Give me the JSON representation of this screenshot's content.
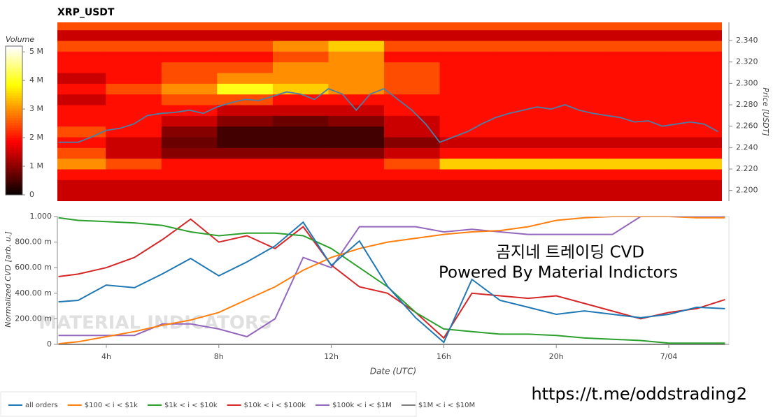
{
  "chart_data": [
    {
      "type": "heatmap",
      "title": "XRP_USDT",
      "ylabel": "Price [USDT]",
      "xlim": [
        2.26,
        26.14
      ],
      "ylim": [
        2.19,
        2.357
      ],
      "yticks": [
        {
          "value": 2.2,
          "label": "2.200"
        },
        {
          "value": 2.22,
          "label": "2.220"
        },
        {
          "value": 2.24,
          "label": "2.240"
        },
        {
          "value": 2.26,
          "label": "2.260"
        },
        {
          "value": 2.28,
          "label": "2.280"
        },
        {
          "value": 2.3,
          "label": "2.300"
        },
        {
          "value": 2.32,
          "label": "2.320"
        },
        {
          "value": 2.34,
          "label": "2.340"
        }
      ],
      "x_bins": [
        2,
        4,
        6,
        8,
        10,
        12,
        14,
        16,
        18,
        20,
        22,
        24,
        26,
        28
      ],
      "y_bins": [
        2.19,
        2.2,
        2.21,
        2.22,
        2.23,
        2.24,
        2.25,
        2.26,
        2.27,
        2.28,
        2.29,
        2.3,
        2.31,
        2.32,
        2.33,
        2.34,
        2.35,
        2.36
      ],
      "z": [
        [
          1.5,
          1.5,
          1.5,
          1.5,
          1.5,
          1.5,
          1.5,
          1.5,
          1.5,
          1.5,
          1.5,
          1.5,
          1.5
        ],
        [
          1.5,
          1.5,
          1.5,
          1.5,
          1.5,
          1.5,
          1.5,
          1.5,
          1.5,
          1.5,
          1.5,
          1.5,
          1.5
        ],
        [
          2,
          2,
          2,
          2,
          2,
          2,
          2,
          2,
          2,
          2,
          2,
          2,
          2
        ],
        [
          3,
          2.5,
          2,
          2,
          2,
          2,
          2.5,
          3.5,
          3.5,
          3.5,
          3.5,
          3.5,
          3.5
        ],
        [
          2.5,
          1.5,
          1,
          1,
          1,
          1,
          1.5,
          2,
          2,
          2,
          2,
          2,
          2
        ],
        [
          2,
          1.5,
          0.8,
          0.5,
          0.5,
          0.5,
          1,
          1.5,
          1.5,
          1.5,
          1.5,
          1.5,
          1.5
        ],
        [
          2.5,
          2,
          1,
          0.5,
          0.5,
          0.5,
          1.5,
          2,
          2,
          2,
          2,
          2,
          2
        ],
        [
          2,
          2,
          1.5,
          1,
          0.8,
          1,
          1.5,
          2,
          2,
          2,
          2,
          2,
          2
        ],
        [
          2,
          2,
          2,
          1.5,
          1.5,
          1.5,
          2,
          2,
          2,
          2,
          2,
          2,
          2
        ],
        [
          1.5,
          2,
          2.5,
          2.5,
          2,
          2,
          2,
          2,
          2,
          2,
          2,
          2,
          2
        ],
        [
          2,
          2.5,
          3,
          4,
          3.5,
          3,
          2.5,
          2,
          2,
          2,
          2,
          2,
          2
        ],
        [
          1.5,
          2,
          2.5,
          3,
          3,
          3,
          2.5,
          2,
          2,
          2,
          2,
          2,
          2
        ],
        [
          2,
          2,
          2.5,
          2.5,
          3,
          3,
          2.5,
          2,
          2,
          2,
          2,
          2,
          2
        ],
        [
          2,
          2,
          2,
          2,
          2.5,
          3,
          2,
          2,
          2,
          2,
          2,
          2,
          2
        ],
        [
          2.5,
          2.5,
          2.5,
          2.5,
          3,
          3.5,
          2.5,
          2.5,
          2.5,
          2.5,
          2.5,
          2.5,
          2.5
        ],
        [
          1.5,
          1.5,
          1.5,
          1.5,
          1.5,
          1.5,
          1.5,
          1.5,
          1.5,
          1.5,
          1.5,
          1.5,
          1.5
        ],
        [
          2.5,
          2.5,
          2.5,
          2.5,
          2.5,
          2.5,
          2.5,
          2.5,
          2.5,
          2.5,
          2.5,
          2.5,
          2.5
        ]
      ],
      "colorbar": {
        "label": "Volume",
        "lim": [
          0,
          5.2
        ],
        "ticks": [
          0,
          {
            "value": 1,
            "label": "1 M"
          },
          {
            "value": 2,
            "label": "2 M"
          },
          {
            "value": 3,
            "label": "3 M"
          },
          {
            "value": 4,
            "label": "4 M"
          },
          {
            "value": 5,
            "label": "5 M"
          }
        ]
      },
      "price": {
        "color": "#4a7fa8",
        "x": [
          2.3,
          3,
          3.5,
          4,
          4.5,
          5,
          5.5,
          6,
          6.5,
          7,
          7.5,
          8,
          8.5,
          9,
          9.5,
          10,
          10.5,
          11,
          11.5,
          12,
          12.5,
          13,
          13.5,
          14,
          14.5,
          15,
          15.5,
          16,
          16.5,
          17,
          17.5,
          18,
          18.5,
          19,
          19.5,
          20,
          20.5,
          21,
          21.5,
          22,
          22.5,
          23,
          23.5,
          24,
          24.5,
          25,
          25.5,
          26
        ],
        "values": [
          2.245,
          2.245,
          2.25,
          2.256,
          2.258,
          2.262,
          2.27,
          2.272,
          2.273,
          2.275,
          2.272,
          2.278,
          2.282,
          2.285,
          2.284,
          2.288,
          2.292,
          2.29,
          2.285,
          2.295,
          2.29,
          2.275,
          2.29,
          2.295,
          2.285,
          2.275,
          2.262,
          2.245,
          2.25,
          2.255,
          2.262,
          2.268,
          2.272,
          2.275,
          2.278,
          2.276,
          2.28,
          2.275,
          2.272,
          2.27,
          2.268,
          2.264,
          2.265,
          2.26,
          2.262,
          2.264,
          2.262,
          2.255
        ]
      }
    },
    {
      "type": "line",
      "xlabel": "Date (UTC)",
      "ylabel": "Normalized CVD [arb. u.]",
      "xlim": [
        2.26,
        26.14
      ],
      "ylim": [
        0,
        1
      ],
      "xticks": [
        {
          "value": 4,
          "label": "4h"
        },
        {
          "value": 8,
          "label": "8h"
        },
        {
          "value": 12,
          "label": "12h"
        },
        {
          "value": 16,
          "label": "16h"
        },
        {
          "value": 20,
          "label": "20h"
        },
        {
          "value": 24,
          "label": "7/04"
        }
      ],
      "yticks": [
        0,
        {
          "value": 0.2,
          "label": "200.00 m"
        },
        {
          "value": 0.4,
          "label": "400.00 m"
        },
        {
          "value": 0.6,
          "label": "600.00 m"
        },
        {
          "value": 0.8,
          "label": "800.00 m"
        },
        {
          "value": 1,
          "label": "1.000"
        }
      ],
      "x": [
        2.3,
        3,
        4,
        5,
        6,
        7,
        8,
        9,
        10,
        11,
        12,
        13,
        14,
        15,
        16,
        17,
        18,
        19,
        20,
        21,
        22,
        23,
        24,
        25,
        26
      ],
      "series": [
        {
          "name": "all orders",
          "color": "#1f77b4",
          "values": [
            0.333,
            0.344,
            0.464,
            0.443,
            0.552,
            0.672,
            0.536,
            0.645,
            0.77,
            0.956,
            0.617,
            0.809,
            0.454,
            0.208,
            0.016,
            0.508,
            0.344,
            0.29,
            0.235,
            0.262,
            0.235,
            0.208,
            0.235,
            0.29,
            0.279
          ]
        },
        {
          "name": "$100 < i < $1k",
          "color": "#ff7f0e",
          "values": [
            0.005,
            0.02,
            0.06,
            0.1,
            0.15,
            0.19,
            0.25,
            0.35,
            0.45,
            0.58,
            0.68,
            0.75,
            0.8,
            0.83,
            0.86,
            0.88,
            0.89,
            0.92,
            0.97,
            0.99,
            1.0,
            1.0,
            1.0,
            0.99,
            0.99
          ]
        },
        {
          "name": "$1k < i < $10k",
          "color": "#2ca02c",
          "values": [
            0.99,
            0.97,
            0.96,
            0.95,
            0.93,
            0.88,
            0.85,
            0.87,
            0.87,
            0.85,
            0.75,
            0.6,
            0.45,
            0.25,
            0.12,
            0.1,
            0.08,
            0.08,
            0.07,
            0.05,
            0.04,
            0.03,
            0.01,
            0.01,
            0.01
          ]
        },
        {
          "name": "$10k < i < $100k",
          "color": "#d62728",
          "values": [
            0.53,
            0.55,
            0.6,
            0.68,
            0.82,
            0.98,
            0.8,
            0.85,
            0.75,
            0.92,
            0.62,
            0.45,
            0.4,
            0.25,
            0.05,
            0.4,
            0.38,
            0.36,
            0.38,
            0.32,
            0.26,
            0.2,
            0.25,
            0.28,
            0.35
          ]
        },
        {
          "name": "$100k < i < $1M",
          "color": "#9467bd",
          "values": [
            0.07,
            0.07,
            0.07,
            0.07,
            0.16,
            0.16,
            0.12,
            0.06,
            0.2,
            0.68,
            0.6,
            0.92,
            0.92,
            0.92,
            0.88,
            0.9,
            0.88,
            0.86,
            0.86,
            0.86,
            0.86,
            1.0,
            1.0,
            1.0,
            1.0
          ]
        },
        {
          "name": "$1M < i < $10M",
          "color": "#7f7f7f",
          "values": [
            0,
            0,
            0,
            0,
            0,
            0,
            0,
            0,
            0,
            0,
            0,
            0,
            0,
            0,
            0,
            0,
            0,
            0,
            0,
            0,
            0,
            0,
            0,
            0,
            0
          ]
        }
      ],
      "watermark": "MATERIAL INDICATORS",
      "annotations": [
        "곰지네 트레이딩 CVD",
        "Powered By Material Indictors"
      ]
    }
  ],
  "footer": "https://t.me/oddstrading2"
}
